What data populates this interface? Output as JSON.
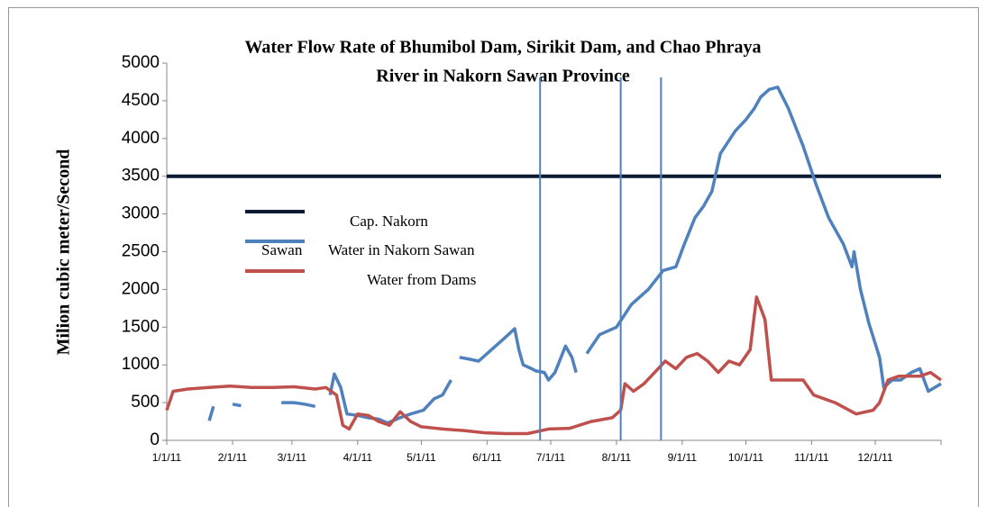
{
  "chart_data": {
    "type": "line",
    "title_lines": [
      "Water Flow Rate of  Bhumibol Dam, Sirikit Dam, and Chao Phraya",
      "River in Nakorn Sawan Province"
    ],
    "y_label": "Milion cubic meter/Second",
    "xlim": [
      0,
      365
    ],
    "xticks": [
      {
        "value": 0,
        "label": "1/1/11"
      },
      {
        "value": 31,
        "label": "2/1/11"
      },
      {
        "value": 59,
        "label": "3/1/11"
      },
      {
        "value": 90,
        "label": "4/1/11"
      },
      {
        "value": 120,
        "label": "5/1/11"
      },
      {
        "value": 151,
        "label": "6/1/11"
      },
      {
        "value": 181,
        "label": "7/1/11"
      },
      {
        "value": 212,
        "label": "8/1/11"
      },
      {
        "value": 243,
        "label": "9/1/11"
      },
      {
        "value": 273,
        "label": "10/1/11"
      },
      {
        "value": 304,
        "label": "11/1/11"
      },
      {
        "value": 334,
        "label": "12/1/11"
      }
    ],
    "ylim": [
      0,
      5000
    ],
    "yticks": [
      0,
      500,
      1000,
      1500,
      2000,
      2500,
      3000,
      3500,
      4000,
      4500,
      5000
    ],
    "vertical_lines": [
      176,
      214,
      233
    ],
    "vertical_line_color": "#4f81bd",
    "legend_name_continuation": "Sawan",
    "series": [
      {
        "name": "Cap. Nakorn",
        "color": "#0d1a33",
        "width": 4,
        "x": [
          0,
          365
        ],
        "values": [
          3500,
          3500
        ]
      },
      {
        "name": "Water in Nakorn Sawan",
        "color": "#4f81bd",
        "width": 3.5,
        "x": [
          20,
          22,
          27,
          31,
          35,
          40,
          54,
          60,
          65,
          70,
          74,
          77,
          79,
          82,
          85,
          90,
          95,
          100,
          104,
          110,
          115,
          121,
          126,
          130,
          134,
          136,
          138,
          142,
          147,
          153,
          159,
          164,
          166,
          168,
          172,
          174,
          178,
          180,
          183,
          188,
          191,
          193,
          196,
          198,
          204,
          212,
          219,
          227,
          234,
          240,
          244,
          249,
          253,
          257,
          261,
          268,
          273,
          277,
          280,
          284,
          288,
          293,
          300,
          306,
          312,
          319,
          323,
          324,
          327,
          331,
          336,
          338,
          342,
          346,
          351,
          355,
          359,
          365
        ],
        "values": [
          260,
          450,
          null,
          480,
          460,
          null,
          500,
          500,
          480,
          450,
          null,
          600,
          880,
          700,
          350,
          330,
          300,
          280,
          230,
          300,
          350,
          400,
          550,
          600,
          800,
          null,
          1100,
          1080,
          1050,
          1200,
          1350,
          1480,
          1200,
          1000,
          950,
          920,
          900,
          800,
          900,
          1250,
          1100,
          900,
          null,
          1150,
          1400,
          1500,
          1800,
          2000,
          2250,
          2300,
          2600,
          2950,
          3100,
          3300,
          3800,
          4100,
          4250,
          4400,
          4550,
          4650,
          4680,
          4400,
          3900,
          3400,
          2950,
          2600,
          2300,
          2500,
          2000,
          1550,
          1100,
          700,
          800,
          800,
          900,
          950,
          650,
          750
        ]
      },
      {
        "name": "Water from Dams",
        "color": "#c0504d",
        "width": 3.5,
        "x": [
          0,
          3,
          10,
          20,
          30,
          40,
          50,
          60,
          70,
          75,
          80,
          83,
          86,
          90,
          95,
          100,
          105,
          110,
          115,
          120,
          130,
          140,
          150,
          160,
          170,
          180,
          190,
          200,
          210,
          214,
          216,
          220,
          225,
          230,
          235,
          240,
          245,
          250,
          255,
          260,
          265,
          270,
          275,
          278,
          282,
          285,
          290,
          300,
          305,
          315,
          325,
          333,
          336,
          340,
          345,
          355,
          360,
          365
        ],
        "values": [
          400,
          650,
          680,
          700,
          720,
          700,
          700,
          710,
          680,
          700,
          600,
          200,
          150,
          350,
          330,
          250,
          200,
          380,
          250,
          180,
          150,
          130,
          100,
          90,
          90,
          150,
          160,
          250,
          300,
          400,
          750,
          650,
          750,
          900,
          1050,
          950,
          1100,
          1150,
          1050,
          900,
          1050,
          1000,
          1200,
          1900,
          1600,
          800,
          800,
          800,
          600,
          500,
          350,
          400,
          500,
          800,
          850,
          850,
          900,
          800
        ]
      }
    ]
  }
}
